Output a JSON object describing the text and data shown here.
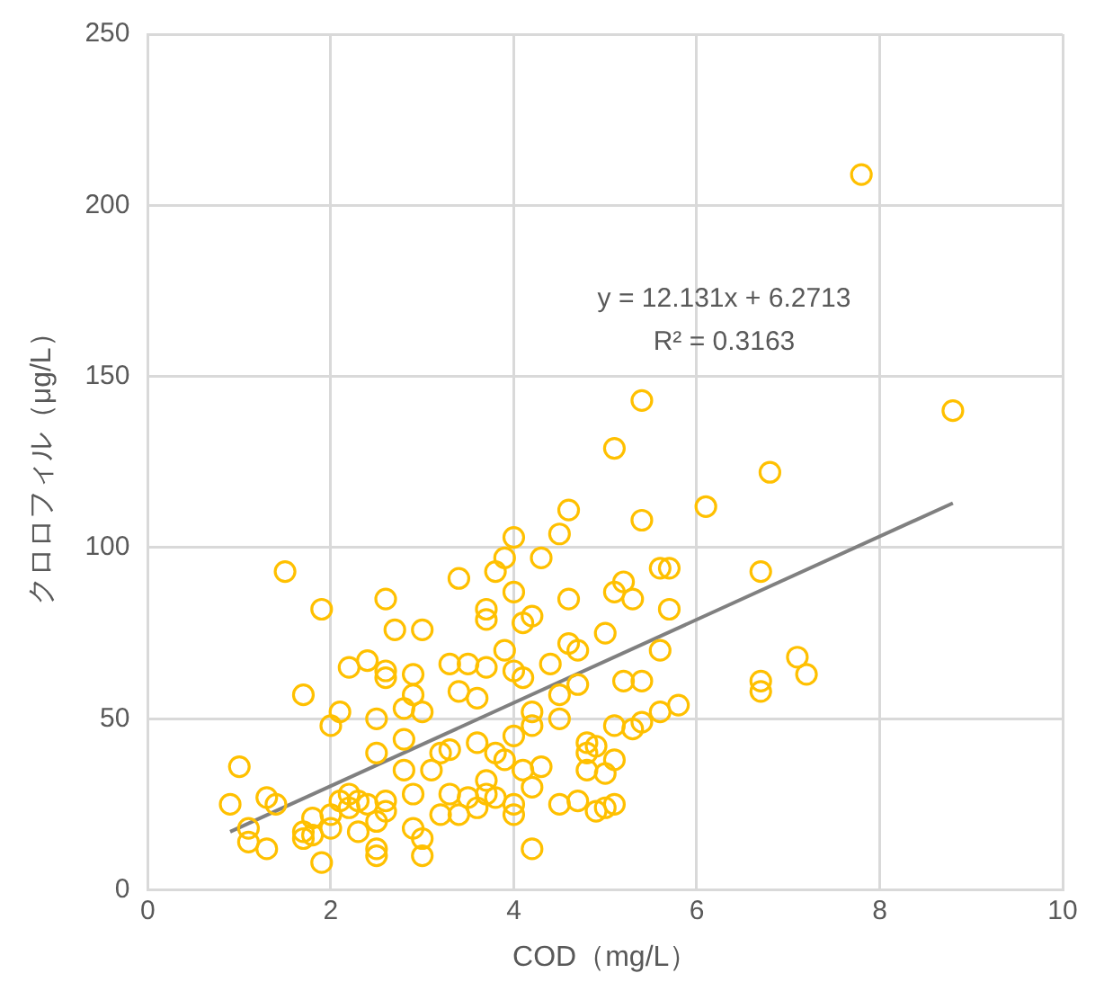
{
  "chart_data": {
    "type": "scatter",
    "xlabel": "COD（mg/L）",
    "ylabel": "クロロフィル（μg/L）",
    "xlim": [
      0,
      10
    ],
    "xticks": [
      0,
      2,
      4,
      6,
      8,
      10
    ],
    "ylim": [
      0,
      250
    ],
    "yticks": [
      0,
      50,
      100,
      150,
      200,
      250
    ],
    "grid": true,
    "legend": false,
    "marker": "circle",
    "annotations": [
      "y = 12.131x + 6.2713",
      "R² = 0.3163"
    ],
    "series": [
      {
        "color": "#ffc000",
        "x": [
          0.9,
          1.0,
          1.1,
          1.1,
          1.3,
          1.3,
          1.4,
          1.5,
          1.7,
          1.7,
          1.7,
          1.8,
          1.8,
          1.9,
          1.9,
          2.0,
          2.0,
          2.0,
          2.1,
          2.1,
          2.2,
          2.2,
          2.2,
          2.3,
          2.3,
          2.4,
          2.4,
          2.5,
          2.5,
          2.5,
          2.5,
          2.5,
          2.6,
          2.6,
          2.6,
          2.6,
          2.6,
          2.7,
          2.8,
          2.8,
          2.8,
          2.9,
          2.9,
          2.9,
          2.9,
          3.0,
          3.0,
          3.0,
          3.0,
          3.1,
          3.2,
          3.2,
          3.3,
          3.3,
          3.3,
          3.4,
          3.4,
          3.4,
          3.5,
          3.5,
          3.6,
          3.6,
          3.6,
          3.7,
          3.7,
          3.7,
          3.7,
          3.7,
          3.8,
          3.8,
          3.8,
          3.9,
          3.9,
          3.9,
          4.0,
          4.0,
          4.0,
          4.0,
          4.0,
          4.0,
          4.1,
          4.1,
          4.1,
          4.2,
          4.2,
          4.2,
          4.2,
          4.2,
          4.3,
          4.3,
          4.4,
          4.5,
          4.5,
          4.5,
          4.5,
          4.6,
          4.6,
          4.6,
          4.7,
          4.7,
          4.7,
          4.8,
          4.8,
          4.8,
          4.9,
          4.9,
          5.0,
          5.0,
          5.0,
          5.1,
          5.1,
          5.1,
          5.1,
          5.1,
          5.2,
          5.2,
          5.3,
          5.3,
          5.4,
          5.4,
          5.4,
          5.4,
          5.6,
          5.6,
          5.6,
          5.7,
          5.7,
          5.8,
          6.1,
          6.7,
          6.7,
          6.7,
          6.8,
          7.1,
          7.2,
          7.8,
          8.8
        ],
        "values": [
          25,
          36,
          14,
          18,
          27,
          12,
          25,
          93,
          57,
          17,
          15,
          16,
          21,
          8,
          82,
          48,
          18,
          22,
          26,
          52,
          28,
          24,
          65,
          17,
          26,
          25,
          67,
          12,
          10,
          20,
          40,
          50,
          23,
          26,
          62,
          64,
          85,
          76,
          35,
          44,
          53,
          28,
          18,
          57,
          63,
          10,
          15,
          76,
          52,
          35,
          40,
          22,
          66,
          28,
          41,
          22,
          91,
          58,
          27,
          66,
          43,
          56,
          24,
          28,
          32,
          65,
          79,
          82,
          40,
          27,
          93,
          70,
          97,
          38,
          25,
          22,
          45,
          64,
          103,
          87,
          78,
          62,
          35,
          12,
          30,
          80,
          52,
          48,
          36,
          97,
          66,
          25,
          50,
          57,
          104,
          72,
          111,
          85,
          26,
          70,
          60,
          35,
          40,
          43,
          42,
          23,
          34,
          24,
          75,
          129,
          87,
          38,
          48,
          25,
          90,
          61,
          47,
          85,
          143,
          108,
          61,
          49,
          94,
          70,
          52,
          82,
          94,
          54,
          112,
          93,
          61,
          58,
          122,
          68,
          63,
          209,
          140
        ]
      },
      {
        "type": "line",
        "color": "#808080",
        "marker": "none",
        "x": [
          0.9,
          8.8
        ],
        "values": [
          17,
          113
        ]
      }
    ]
  }
}
